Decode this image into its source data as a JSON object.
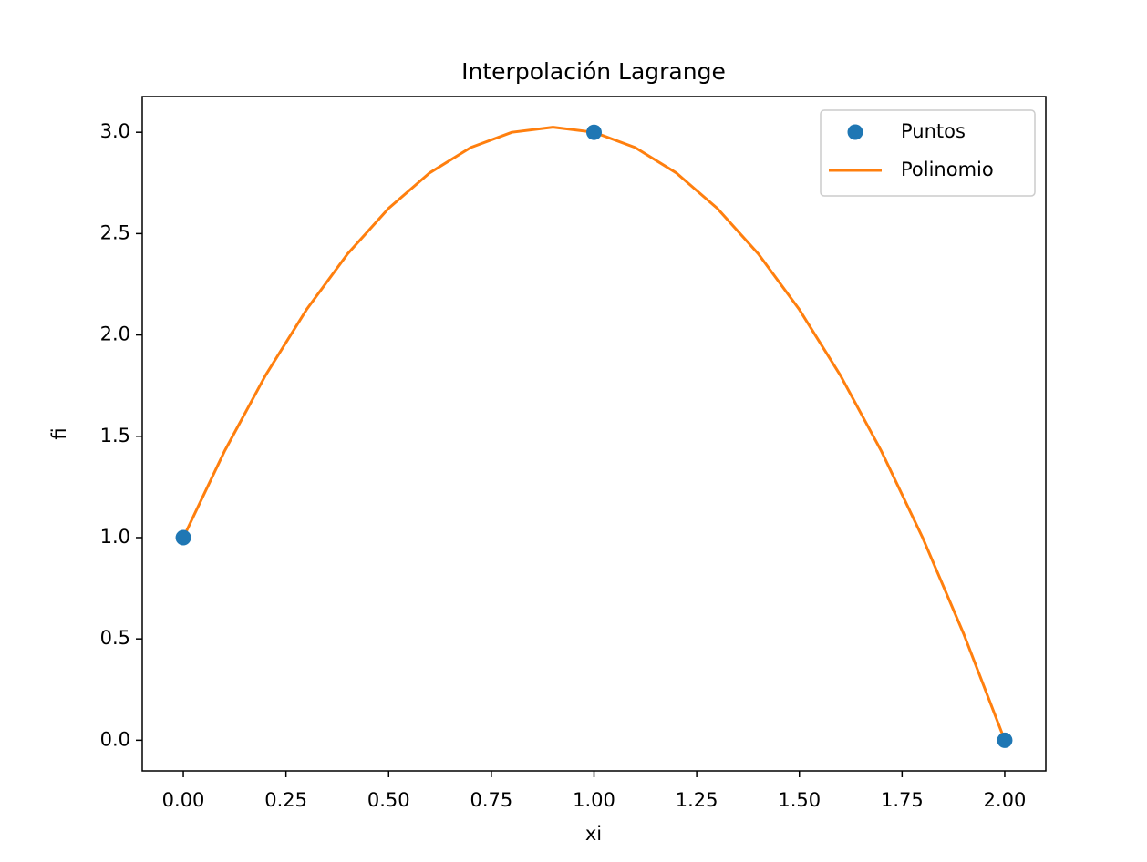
{
  "chart_data": {
    "type": "line",
    "title": "Interpolación Lagrange",
    "x_label": "xi",
    "y_label": "fi",
    "xlim": [
      -0.1,
      2.1
    ],
    "ylim": [
      -0.15125,
      3.17625
    ],
    "xticks": [
      {
        "value": 0,
        "label": "0.00"
      },
      {
        "value": 0.25,
        "label": "0.25"
      },
      {
        "value": 0.5,
        "label": "0.50"
      },
      {
        "value": 0.75,
        "label": "0.75"
      },
      {
        "value": 1,
        "label": "1.00"
      },
      {
        "value": 1.25,
        "label": "1.25"
      },
      {
        "value": 1.5,
        "label": "1.50"
      },
      {
        "value": 1.75,
        "label": "1.75"
      },
      {
        "value": 2,
        "label": "2.00"
      }
    ],
    "yticks": [
      {
        "value": 0,
        "label": "0.0"
      },
      0.5,
      {
        "value": 1,
        "label": "1.0"
      },
      1.5,
      {
        "value": 2,
        "label": "2.0"
      },
      2.5,
      {
        "value": 3,
        "label": "3.0"
      }
    ],
    "legend": "upper right",
    "grid": false,
    "series": [
      {
        "name": "Puntos",
        "color": "#1f77b4",
        "style": "markers",
        "x": [
          0,
          1,
          2
        ],
        "values": [
          1,
          3,
          0
        ]
      },
      {
        "name": "Polinomio",
        "color": "#ff7f0e",
        "style": "line",
        "x": [
          0,
          0.1,
          0.2,
          0.3,
          0.4,
          0.5,
          0.6,
          0.7,
          0.8,
          0.9,
          1.0,
          1.1,
          1.2,
          1.3,
          1.4,
          1.5,
          1.6,
          1.7,
          1.8,
          1.9,
          2.0
        ],
        "values": [
          1,
          1.425,
          1.8,
          2.125,
          2.4,
          2.625,
          2.8,
          2.925,
          3.0,
          3.025,
          3,
          2.925,
          2.8,
          2.625,
          2.4,
          2.125,
          1.8,
          1.425,
          1.0,
          0.525,
          0
        ]
      }
    ]
  }
}
